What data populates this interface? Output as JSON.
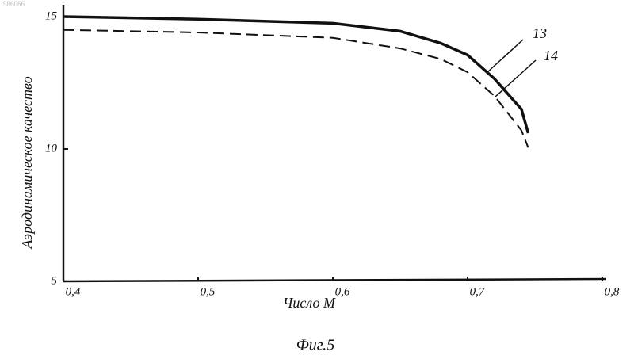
{
  "doc_number": "986066",
  "chart_data": {
    "type": "line",
    "ylabel": "Аэродинамическое качество",
    "xlabel": "Число М",
    "caption": "Фиг.5",
    "x": [
      0.4,
      0.5,
      0.6,
      0.65,
      0.68,
      0.7,
      0.72,
      0.74,
      0.745
    ],
    "series": [
      {
        "name": "13",
        "color": "#111111",
        "style": "solid",
        "values": [
          15.0,
          14.9,
          14.75,
          14.45,
          14.0,
          13.55,
          12.65,
          11.5,
          10.6
        ]
      },
      {
        "name": "14",
        "color": "#111111",
        "style": "dashed",
        "values": [
          14.5,
          14.4,
          14.2,
          13.8,
          13.4,
          12.9,
          12.0,
          10.7,
          10.05
        ]
      }
    ],
    "xlim": [
      0.4,
      0.8
    ],
    "ylim": [
      5,
      15
    ],
    "xticks": [
      {
        "value": 0.4,
        "label": "0,4"
      },
      {
        "value": 0.5,
        "label": "0,5"
      },
      {
        "value": 0.6,
        "label": "0,6"
      },
      {
        "value": 0.7,
        "label": "0,7"
      },
      {
        "value": 0.8,
        "label": "0,8"
      }
    ],
    "yticks": [
      5,
      10,
      15
    ]
  }
}
